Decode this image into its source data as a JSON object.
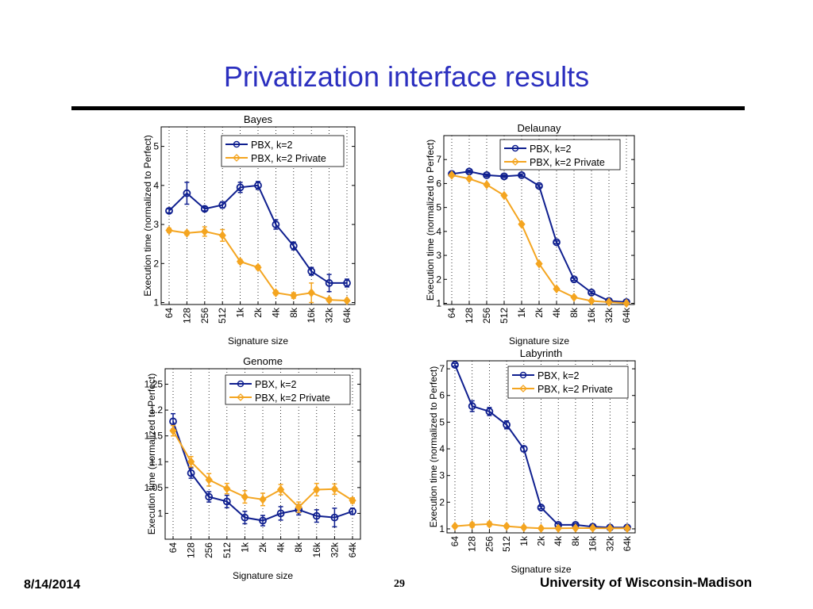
{
  "slide": {
    "title": "Privatization interface results",
    "date": "8/14/2014",
    "page": "29",
    "organization": "University of Wisconsin-Madison"
  },
  "colors": {
    "series1": "#0f1f8f",
    "series2": "#f4a520",
    "title": "#2b2fbf"
  },
  "chart_data": [
    {
      "type": "line",
      "title": "Bayes",
      "xlabel": "Signature size",
      "ylabel": "Execution time (normalized to Perfect)",
      "categories": [
        "64",
        "128",
        "256",
        "512",
        "1k",
        "2k",
        "4k",
        "8k",
        "16k",
        "32k",
        "64k"
      ],
      "ylim": [
        0.95,
        5.5
      ],
      "yticks": [
        1,
        2,
        3,
        4,
        5
      ],
      "ytick_labels": [
        "1",
        "2",
        "3",
        "4",
        "5"
      ],
      "grid": "vertical-dotted",
      "legend": "top-right",
      "series": [
        {
          "name": "PBX, k=2",
          "marker": "circle",
          "values": [
            3.35,
            3.8,
            3.4,
            3.5,
            3.95,
            4.0,
            3.0,
            2.45,
            1.8,
            1.5,
            1.5
          ],
          "errors": [
            0.05,
            0.28,
            0.05,
            0.08,
            0.13,
            0.1,
            0.12,
            0.1,
            0.1,
            0.22,
            0.1
          ]
        },
        {
          "name": "PBX, k=2 Private",
          "marker": "diamond",
          "values": [
            2.85,
            2.78,
            2.82,
            2.72,
            2.05,
            1.9,
            1.25,
            1.18,
            1.25,
            1.07,
            1.05
          ],
          "errors": [
            0.05,
            0.05,
            0.12,
            0.15,
            0.05,
            0.05,
            0.05,
            0.07,
            0.25,
            0.05,
            0.03
          ]
        }
      ]
    },
    {
      "type": "line",
      "title": "Delaunay",
      "xlabel": "Signature size",
      "ylabel": "Execution time (normalized to Perfect)",
      "categories": [
        "64",
        "128",
        "256",
        "512",
        "1k",
        "2k",
        "4k",
        "8k",
        "16k",
        "32k",
        "64k"
      ],
      "ylim": [
        0.95,
        8.0
      ],
      "yticks": [
        1,
        2,
        3,
        4,
        5,
        6,
        7
      ],
      "ytick_labels": [
        "1",
        "2",
        "3",
        "4",
        "5",
        "6",
        "7"
      ],
      "grid": "vertical-dotted",
      "legend": "top-right",
      "series": [
        {
          "name": "PBX, k=2",
          "marker": "circle",
          "values": [
            6.4,
            6.5,
            6.35,
            6.3,
            6.35,
            5.9,
            3.55,
            2.0,
            1.45,
            1.1,
            1.05
          ],
          "errors": [
            0.05,
            0.05,
            0.05,
            0.05,
            0.05,
            0.05,
            0.05,
            0.05,
            0.05,
            0.05,
            0.03
          ]
        },
        {
          "name": "PBX, k=2 Private",
          "marker": "diamond",
          "values": [
            6.35,
            6.2,
            5.95,
            5.5,
            4.3,
            2.65,
            1.6,
            1.25,
            1.1,
            1.05,
            1.0
          ],
          "errors": [
            0.05,
            0.05,
            0.05,
            0.05,
            0.05,
            0.05,
            0.05,
            0.05,
            0.05,
            0.03,
            0.03
          ]
        }
      ]
    },
    {
      "type": "line",
      "title": "Genome",
      "xlabel": "Signature size",
      "ylabel": "Execution time (normalized to Perfect)",
      "categories": [
        "64",
        "128",
        "256",
        "512",
        "1k",
        "2k",
        "4k",
        "8k",
        "16k",
        "32k",
        "64k"
      ],
      "ylim": [
        0.95,
        1.28
      ],
      "yticks": [
        1,
        1.05,
        1.1,
        1.15,
        1.2,
        1.25
      ],
      "ytick_labels": [
        "1",
        "1.05",
        "1.1",
        "1.15",
        "1.2",
        "1.25"
      ],
      "grid": "vertical-dotted",
      "legend": "top-right",
      "series": [
        {
          "name": "PBX, k=2",
          "marker": "circle",
          "values": [
            1.178,
            1.078,
            1.032,
            1.023,
            0.992,
            0.986,
            1.0,
            1.007,
            0.995,
            0.992,
            1.004
          ],
          "errors": [
            0.015,
            0.01,
            0.01,
            0.012,
            0.012,
            0.01,
            0.013,
            0.01,
            0.012,
            0.018,
            0.006
          ]
        },
        {
          "name": "PBX, k=2 Private",
          "marker": "diamond",
          "values": [
            1.16,
            1.1,
            1.065,
            1.048,
            1.032,
            1.027,
            1.046,
            1.012,
            1.046,
            1.047,
            1.025
          ],
          "errors": [
            0.01,
            0.01,
            0.012,
            0.01,
            0.012,
            0.012,
            0.01,
            0.01,
            0.012,
            0.01,
            0.005
          ]
        }
      ]
    },
    {
      "type": "line",
      "title": "Labyrinth",
      "xlabel": "Signature size",
      "ylabel": "Execution time (normalized to Perfect)",
      "categories": [
        "64",
        "128",
        "256",
        "512",
        "1k",
        "2k",
        "4k",
        "8k",
        "16k",
        "32k",
        "64k"
      ],
      "ylim": [
        0.85,
        7.3
      ],
      "yticks": [
        1,
        2,
        3,
        4,
        5,
        6,
        7
      ],
      "ytick_labels": [
        "1",
        "2",
        "3",
        "4",
        "5",
        "6",
        "7"
      ],
      "grid": "vertical-dotted",
      "legend": "top-right",
      "series": [
        {
          "name": "PBX, k=2",
          "marker": "circle",
          "values": [
            7.15,
            5.6,
            5.4,
            4.9,
            4.0,
            1.8,
            1.15,
            1.15,
            1.08,
            1.05,
            1.05
          ],
          "errors": [
            0.05,
            0.2,
            0.15,
            0.15,
            0.1,
            0.05,
            0.05,
            0.05,
            0.05,
            0.05,
            0.03
          ]
        },
        {
          "name": "PBX, k=2 Private",
          "marker": "diamond",
          "values": [
            1.1,
            1.15,
            1.18,
            1.1,
            1.05,
            1.02,
            1.02,
            1.03,
            1.03,
            1.02,
            1.02
          ],
          "errors": [
            0.05,
            0.08,
            0.08,
            0.06,
            0.05,
            0.04,
            0.04,
            0.04,
            0.04,
            0.03,
            0.03
          ]
        }
      ]
    }
  ]
}
